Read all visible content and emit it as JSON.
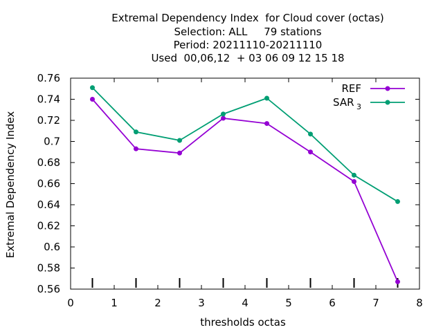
{
  "chart_data": {
    "type": "line",
    "title": [
      "Extremal Dependency Index  for Cloud cover (octas)",
      "Selection: ALL     79 stations",
      "Period: 20211110-20211110",
      "Used  00,06,12  + 03 06 09 12 15 18"
    ],
    "xlabel": "thresholds octas",
    "ylabel": "Extremal Dependency Index",
    "xlim": [
      0,
      8
    ],
    "ylim": [
      0.56,
      0.76
    ],
    "xticks": [
      "0",
      "1",
      "2",
      "3",
      "4",
      "5",
      "6",
      "7",
      "8"
    ],
    "yticks": [
      "0.56",
      "0.58",
      "0.6",
      "0.62",
      "0.64",
      "0.66",
      "0.68",
      "0.7",
      "0.72",
      "0.74",
      "0.76"
    ],
    "x": [
      0.5,
      1.5,
      2.5,
      3.5,
      4.5,
      5.5,
      6.5,
      7.5
    ],
    "series": [
      {
        "name": "REF",
        "color": "#9400d3",
        "values": [
          0.74,
          0.693,
          0.689,
          0.722,
          0.717,
          0.69,
          0.662,
          0.567
        ]
      },
      {
        "name": "SAR",
        "name_sub": "3",
        "color": "#009e73",
        "values": [
          0.751,
          0.709,
          0.701,
          0.726,
          0.741,
          0.707,
          0.668,
          0.643
        ]
      }
    ],
    "grid": false,
    "legend_position": "top-right"
  }
}
